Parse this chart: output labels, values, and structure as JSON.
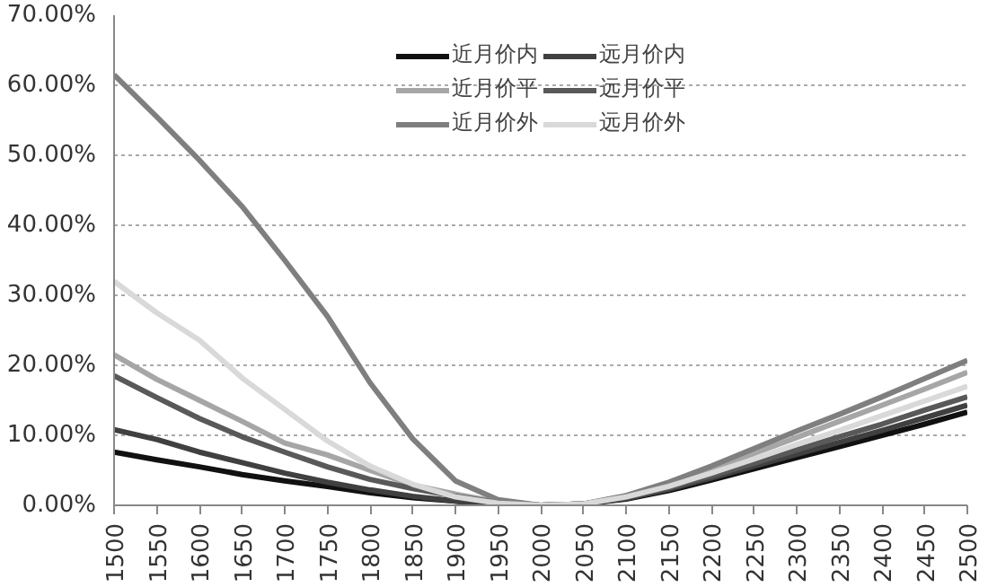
{
  "chart_data": {
    "type": "line",
    "x": [
      1500,
      1550,
      1600,
      1650,
      1700,
      1750,
      1800,
      1850,
      1900,
      1950,
      2000,
      2050,
      2100,
      2150,
      2200,
      2250,
      2300,
      2350,
      2400,
      2450,
      2500
    ],
    "series": [
      {
        "name": "近月价内",
        "color": "#111111",
        "values": [
          7.6,
          6.5,
          5.5,
          4.4,
          3.5,
          2.7,
          1.8,
          1.1,
          0.6,
          0.2,
          0,
          0.2,
          0.9,
          2.1,
          3.6,
          5.2,
          6.8,
          8.4,
          10,
          11.6,
          13.3
        ]
      },
      {
        "name": "远月价内",
        "color": "#404040",
        "values": [
          10.8,
          9.4,
          7.6,
          6.1,
          4.6,
          3.3,
          2.2,
          1.3,
          0.6,
          0.2,
          0,
          0.2,
          1,
          2.3,
          3.9,
          5.6,
          7.3,
          9,
          10.7,
          12.5,
          14.3
        ]
      },
      {
        "name": "近月价平",
        "color": "#a6a6a6",
        "values": [
          21.5,
          18,
          15,
          12,
          8.9,
          7.2,
          5,
          2.9,
          1.6,
          0.5,
          0,
          0.2,
          1.3,
          3,
          5.1,
          7.4,
          9.7,
          12,
          14.3,
          16.6,
          19
        ]
      },
      {
        "name": "远月价平",
        "color": "#595959",
        "values": [
          18.5,
          15.4,
          12.4,
          9.8,
          7.6,
          5.5,
          3.7,
          2.4,
          1.3,
          0.4,
          0,
          0.2,
          1.1,
          2.5,
          4.2,
          6,
          7.9,
          9.8,
          11.6,
          13.6,
          15.5
        ]
      },
      {
        "name": "近月价外",
        "color": "#7f7f7f",
        "values": [
          61.5,
          55.5,
          49.3,
          42.7,
          35,
          27,
          17.5,
          9.5,
          3.5,
          0.8,
          0,
          0.2,
          1.4,
          3.3,
          5.6,
          8.1,
          10.6,
          13,
          15.5,
          18.1,
          20.7
        ]
      },
      {
        "name": "远月价外",
        "color": "#d9d9d9",
        "values": [
          32,
          27.5,
          23.6,
          18.2,
          13.7,
          9.2,
          5.6,
          3,
          1.2,
          0.3,
          0,
          0.2,
          1.2,
          2.7,
          4.6,
          6.6,
          8.7,
          10.7,
          12.8,
          14.9,
          17
        ]
      }
    ],
    "xlim": [
      1500,
      2500
    ],
    "xticks": [
      1500,
      1550,
      1600,
      1650,
      1700,
      1750,
      1800,
      1850,
      1900,
      1950,
      2000,
      2050,
      2100,
      2150,
      2200,
      2250,
      2300,
      2350,
      2400,
      2450,
      2500
    ],
    "ylim": [
      0,
      70
    ],
    "yticks": [
      {
        "value": 0,
        "label": "0.00%"
      },
      {
        "value": 10,
        "label": "10.00%"
      },
      {
        "value": 20,
        "label": "20.00%"
      },
      {
        "value": 30,
        "label": "30.00%"
      },
      {
        "value": 40,
        "label": "40.00%"
      },
      {
        "value": 50,
        "label": "50.00%"
      },
      {
        "value": 60,
        "label": "60.00%"
      },
      {
        "value": 70,
        "label": "70.00%"
      }
    ],
    "grid": "y",
    "legend": "top",
    "marker": "none",
    "line_style": "solid"
  }
}
